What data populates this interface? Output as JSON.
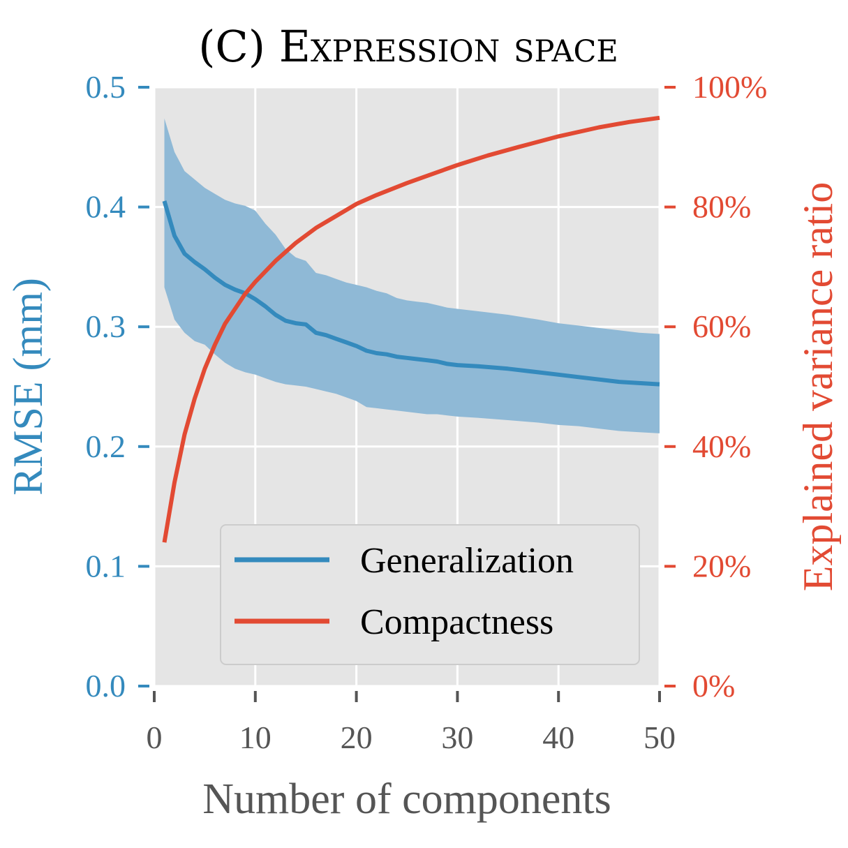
{
  "colors": {
    "generalization": "#348abd",
    "band": "#8fb9d6",
    "compactness": "#e24a33",
    "plot_bg": "#e5e5e5",
    "grid": "#ffffff",
    "tick_x": "#555555"
  },
  "chart_data": {
    "type": "line",
    "title": "(C) Expression space",
    "xlabel": "Number of components",
    "ylabel": "RMSE (mm)",
    "ylabel_right": "Explained variance ratio",
    "xlim": [
      0,
      50
    ],
    "ylim": [
      0.0,
      0.5
    ],
    "ylim_right": [
      0,
      100
    ],
    "x_ticks": [
      "0",
      "10",
      "20",
      "30",
      "40",
      "50"
    ],
    "y_ticks": [
      "0.0",
      "0.1",
      "0.2",
      "0.3",
      "0.4",
      "0.5"
    ],
    "y_ticks_right": [
      "0%",
      "20%",
      "40%",
      "60%",
      "80%",
      "100%"
    ],
    "legend_position": "lower-right",
    "series": [
      {
        "name": "Generalization",
        "axis": "left",
        "x": [
          1,
          2,
          3,
          4,
          5,
          6,
          7,
          8,
          9,
          10,
          11,
          12,
          13,
          14,
          15,
          16,
          17,
          18,
          19,
          20,
          21,
          22,
          23,
          24,
          25,
          26,
          27,
          28,
          29,
          30,
          32,
          35,
          38,
          40,
          42,
          44,
          46,
          48,
          50
        ],
        "values": [
          0.405,
          0.376,
          0.361,
          0.354,
          0.348,
          0.341,
          0.335,
          0.331,
          0.328,
          0.323,
          0.317,
          0.31,
          0.305,
          0.303,
          0.302,
          0.295,
          0.293,
          0.29,
          0.287,
          0.284,
          0.28,
          0.278,
          0.277,
          0.275,
          0.274,
          0.273,
          0.272,
          0.271,
          0.269,
          0.268,
          0.267,
          0.265,
          0.262,
          0.26,
          0.258,
          0.256,
          0.254,
          0.253,
          0.252
        ],
        "lower": [
          0.333,
          0.306,
          0.295,
          0.288,
          0.285,
          0.277,
          0.27,
          0.265,
          0.262,
          0.26,
          0.257,
          0.254,
          0.252,
          0.251,
          0.25,
          0.248,
          0.246,
          0.244,
          0.241,
          0.238,
          0.233,
          0.232,
          0.231,
          0.23,
          0.229,
          0.228,
          0.227,
          0.227,
          0.226,
          0.225,
          0.224,
          0.222,
          0.22,
          0.218,
          0.217,
          0.215,
          0.213,
          0.212,
          0.211
        ],
        "upper": [
          0.474,
          0.446,
          0.43,
          0.423,
          0.416,
          0.411,
          0.406,
          0.403,
          0.401,
          0.397,
          0.386,
          0.377,
          0.365,
          0.358,
          0.355,
          0.345,
          0.343,
          0.34,
          0.337,
          0.335,
          0.333,
          0.33,
          0.328,
          0.324,
          0.322,
          0.321,
          0.32,
          0.318,
          0.316,
          0.315,
          0.313,
          0.31,
          0.306,
          0.303,
          0.301,
          0.299,
          0.297,
          0.295,
          0.294
        ]
      },
      {
        "name": "Compactness",
        "axis": "right",
        "x": [
          1,
          2,
          3,
          4,
          5,
          6,
          7,
          8,
          9,
          10,
          12,
          14,
          16,
          18,
          20,
          22,
          25,
          28,
          30,
          33,
          36,
          40,
          44,
          47,
          50
        ],
        "values": [
          24,
          34,
          42,
          48,
          53,
          57,
          60.5,
          63,
          65.5,
          67.5,
          71,
          74,
          76.5,
          78.5,
          80.5,
          82,
          84,
          85.8,
          87,
          88.6,
          90,
          91.8,
          93.3,
          94.2,
          94.9
        ]
      }
    ]
  }
}
